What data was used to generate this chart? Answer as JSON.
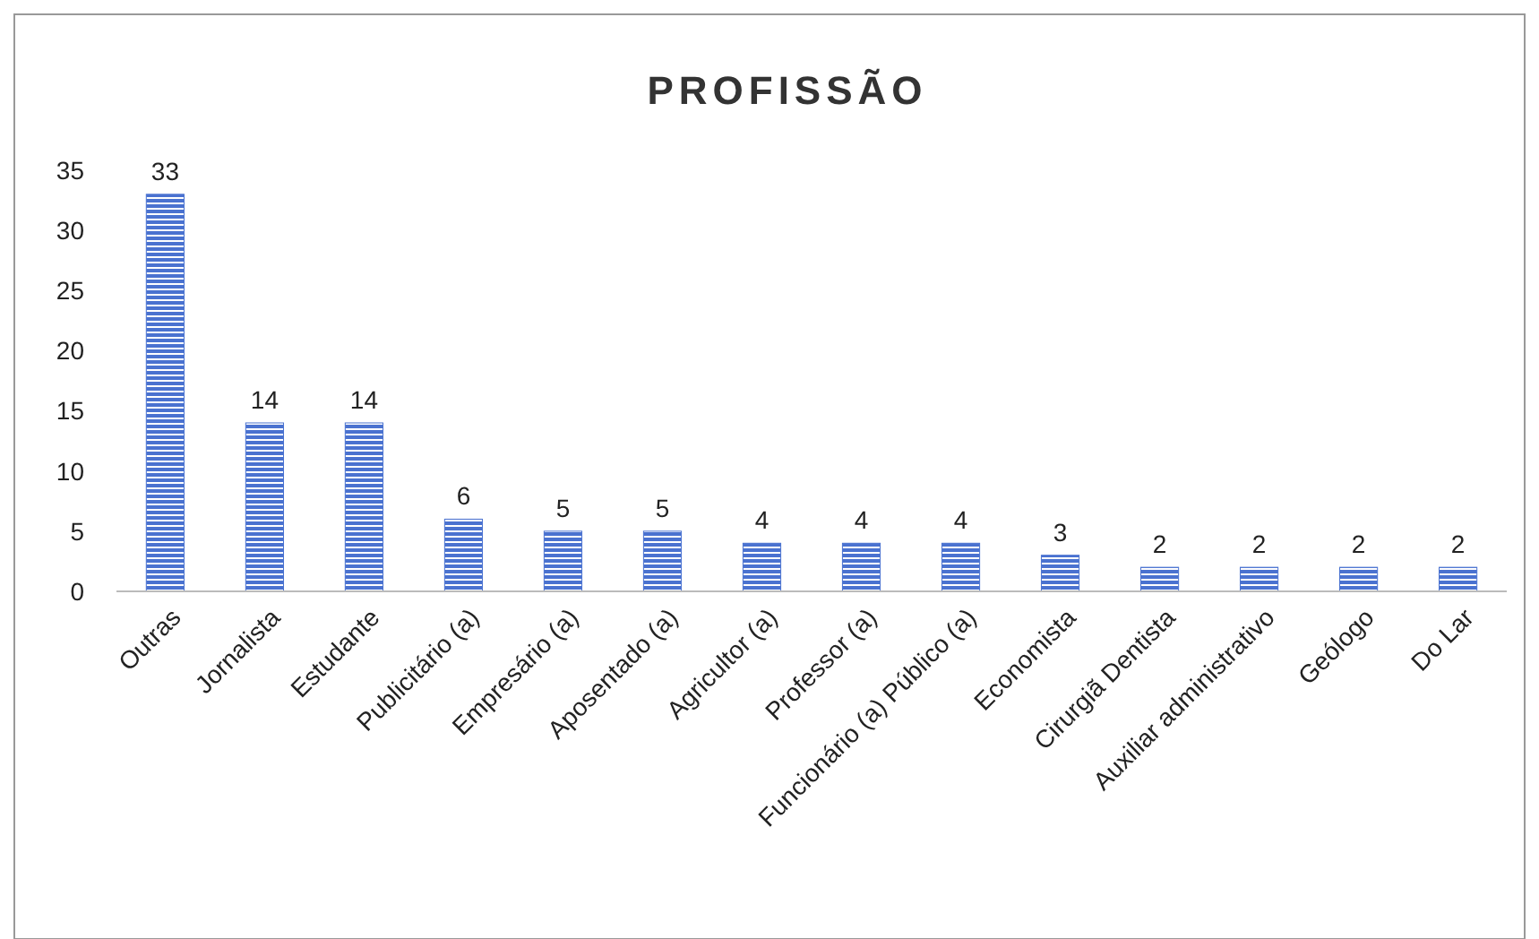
{
  "chart_data": {
    "type": "bar",
    "title": "PROFISSÃO",
    "categories": [
      "Outras",
      "Jornalista",
      "Estudante",
      "Publicitário (a)",
      "Empresário (a)",
      "Aposentado (a)",
      "Agricultor (a)",
      "Professor (a)",
      "Funcionário (a) Público (a)",
      "Economista",
      "Cirurgiã Dentista",
      "Auxiliar administrativo",
      "Geólogo",
      "Do Lar"
    ],
    "values": [
      33,
      14,
      14,
      6,
      5,
      5,
      4,
      4,
      4,
      3,
      2,
      2,
      2,
      2
    ],
    "color": "#4a72d0",
    "ylim": [
      0,
      35
    ],
    "yticks": [
      0,
      5,
      10,
      15,
      20,
      25,
      30,
      35
    ],
    "grid": false,
    "data_labels": true
  }
}
